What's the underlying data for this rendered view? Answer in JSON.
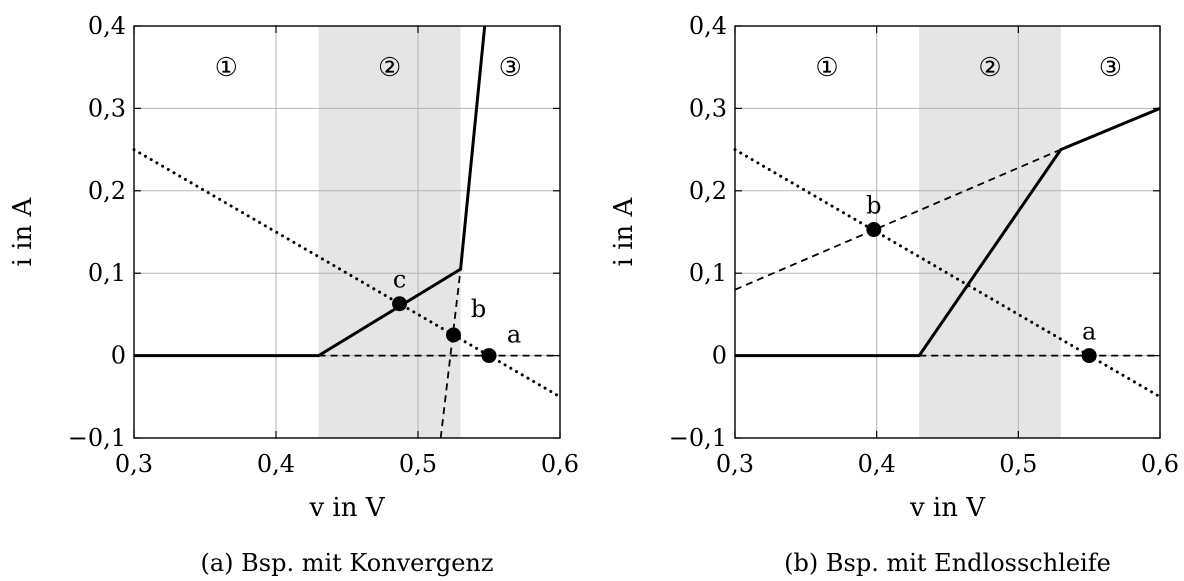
{
  "chart_data": [
    {
      "type": "line",
      "caption": "(a) Bsp. mit Konvergenz",
      "xlabel": "v in V",
      "ylabel": "i in A",
      "xlim": [
        0.3,
        0.6
      ],
      "ylim": [
        -0.1,
        0.4
      ],
      "xticks": [
        "0,3",
        "0,4",
        "0,5",
        "0,6"
      ],
      "yticks": [
        "−0,1",
        "0",
        "0,1",
        "0,2",
        "0,3",
        "0,4"
      ],
      "grid": true,
      "regions": [
        {
          "label": "①",
          "x_range": [
            0.3,
            0.43
          ],
          "shaded": false
        },
        {
          "label": "②",
          "x_range": [
            0.43,
            0.53
          ],
          "shaded": true,
          "color": "#e5e5e5"
        },
        {
          "label": "③",
          "x_range": [
            0.53,
            0.6
          ],
          "shaded": false
        }
      ],
      "series": [
        {
          "style": "solid",
          "x": [
            0.3,
            0.43,
            0.53,
            0.547
          ],
          "y": [
            0,
            0,
            0.105,
            0.4
          ]
        },
        {
          "style": "dotted",
          "x": [
            0.3,
            0.6
          ],
          "y": [
            0.25,
            -0.05
          ]
        },
        {
          "style": "dashed",
          "x": [
            0.43,
            0.6
          ],
          "y": [
            0,
            0
          ]
        },
        {
          "style": "dashed",
          "x": [
            0.516,
            0.53
          ],
          "y": [
            -0.1,
            0.105
          ]
        }
      ],
      "points": [
        {
          "label": "a",
          "x": 0.55,
          "y": 0
        },
        {
          "label": "b",
          "x": 0.525,
          "y": 0.025
        },
        {
          "label": "c",
          "x": 0.487,
          "y": 0.063
        }
      ]
    },
    {
      "type": "line",
      "caption": "(b) Bsp. mit Endlosschleife",
      "xlabel": "v in V",
      "ylabel": "i in A",
      "xlim": [
        0.3,
        0.6
      ],
      "ylim": [
        -0.1,
        0.4
      ],
      "xticks": [
        "0,3",
        "0,4",
        "0,5",
        "0,6"
      ],
      "yticks": [
        "−0,1",
        "0",
        "0,1",
        "0,2",
        "0,3",
        "0,4"
      ],
      "grid": true,
      "regions": [
        {
          "label": "①",
          "x_range": [
            0.3,
            0.43
          ],
          "shaded": false
        },
        {
          "label": "②",
          "x_range": [
            0.43,
            0.53
          ],
          "shaded": true,
          "color": "#e5e5e5"
        },
        {
          "label": "③",
          "x_range": [
            0.53,
            0.6
          ],
          "shaded": false
        }
      ],
      "series": [
        {
          "style": "solid",
          "x": [
            0.3,
            0.43,
            0.53,
            0.6
          ],
          "y": [
            0,
            0,
            0.25,
            0.3
          ]
        },
        {
          "style": "dotted",
          "x": [
            0.3,
            0.6
          ],
          "y": [
            0.25,
            -0.05
          ]
        },
        {
          "style": "dashed",
          "x": [
            0.43,
            0.6
          ],
          "y": [
            0,
            0
          ]
        },
        {
          "style": "dashed",
          "x": [
            0.3,
            0.53
          ],
          "y": [
            0.08,
            0.25
          ]
        }
      ],
      "points": [
        {
          "label": "a",
          "x": 0.55,
          "y": 0
        },
        {
          "label": "b",
          "x": 0.398,
          "y": 0.153
        }
      ]
    }
  ]
}
